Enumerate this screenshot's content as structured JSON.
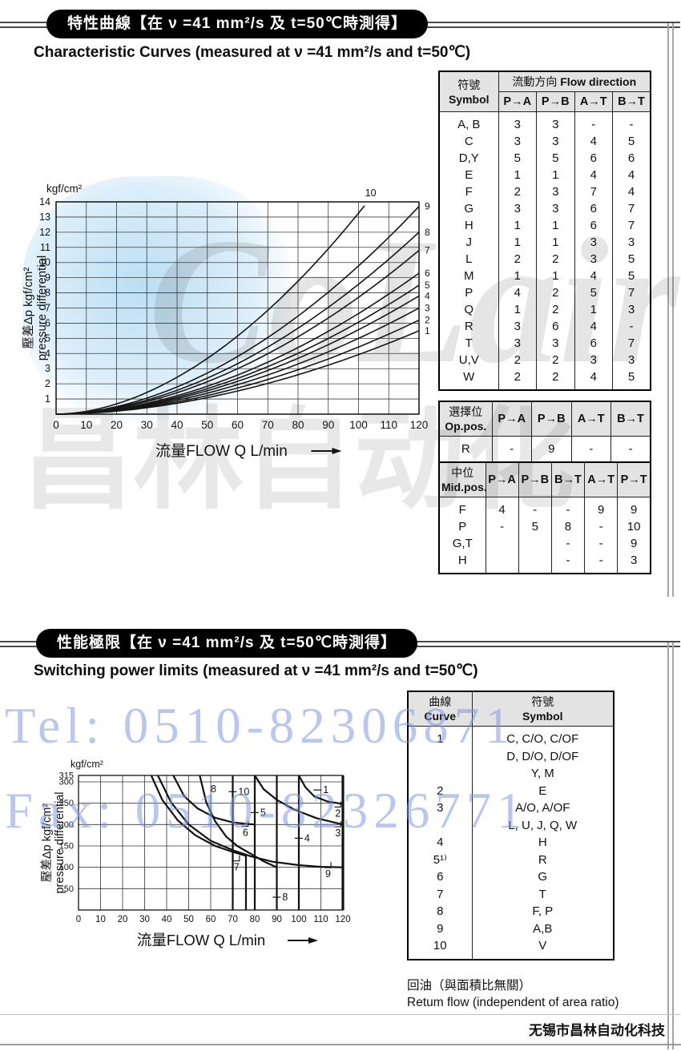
{
  "page": {
    "footer_company": "无锡市昌林自动化科技",
    "watermark_tel": "Tel: 0510-82306871",
    "watermark_fax": "Fax: 0510-82326771",
    "watermark_logo_en": "CoLair",
    "watermark_logo_cn": "昌林自动化"
  },
  "section1": {
    "title_cn": "特性曲線【在 ν =41 mm²/s 及 t=50℃時測得】",
    "title_en": "Characteristic Curves  (measured at ν =41 mm²/s and t=50℃)",
    "flow_table": {
      "header_col_cn": "符號",
      "header_col_en": "Symbol",
      "header_group_cn": "流動方向",
      "header_group_en": "Flow direction",
      "directions": [
        "P→A",
        "P→B",
        "A→T",
        "B→T"
      ],
      "rows": [
        {
          "symbol": "A, B",
          "values": [
            "3",
            "3",
            "-",
            "-"
          ]
        },
        {
          "symbol": "C",
          "values": [
            "3",
            "3",
            "4",
            "5"
          ]
        },
        {
          "symbol": "D,Y",
          "values": [
            "5",
            "5",
            "6",
            "6"
          ]
        },
        {
          "symbol": "E",
          "values": [
            "1",
            "1",
            "4",
            "4"
          ]
        },
        {
          "symbol": "F",
          "values": [
            "2",
            "3",
            "7",
            "4"
          ]
        },
        {
          "symbol": "G",
          "values": [
            "3",
            "3",
            "6",
            "7"
          ]
        },
        {
          "symbol": "H",
          "values": [
            "1",
            "1",
            "6",
            "7"
          ]
        },
        {
          "symbol": "J",
          "values": [
            "1",
            "1",
            "3",
            "3"
          ]
        },
        {
          "symbol": "L",
          "values": [
            "2",
            "2",
            "3",
            "5"
          ]
        },
        {
          "symbol": "M",
          "values": [
            "1",
            "1",
            "4",
            "5"
          ]
        },
        {
          "symbol": "P",
          "values": [
            "4",
            "2",
            "5",
            "7"
          ]
        },
        {
          "symbol": "Q",
          "values": [
            "1",
            "2",
            "1",
            "3"
          ]
        },
        {
          "symbol": "R",
          "values": [
            "3",
            "6",
            "4",
            "-"
          ]
        },
        {
          "symbol": "T",
          "values": [
            "3",
            "3",
            "6",
            "7"
          ]
        },
        {
          "symbol": "U,V",
          "values": [
            "2",
            "2",
            "3",
            "3"
          ]
        },
        {
          "symbol": "W",
          "values": [
            "2",
            "2",
            "4",
            "5"
          ]
        }
      ]
    },
    "op_pos_table": {
      "header_cn": "選擇位",
      "header_en": "Op.pos.",
      "directions": [
        "P→A",
        "P→B",
        "A→T",
        "B→T"
      ],
      "rows": [
        {
          "symbol": "R",
          "values": [
            "-",
            "9",
            "-",
            "-"
          ]
        }
      ]
    },
    "mid_pos_table": {
      "header_cn": "中位",
      "header_en": "Mid.pos.",
      "directions": [
        "P→A",
        "P→B",
        "B→T",
        "A→T",
        "P→T"
      ],
      "rows": [
        {
          "symbol": "F",
          "values": [
            "4",
            "-",
            "-",
            "9",
            "9"
          ]
        },
        {
          "symbol": "P",
          "values": [
            "-",
            "5",
            "8",
            "-",
            "10"
          ]
        },
        {
          "symbol": "G,T",
          "values": [
            "",
            "",
            "-",
            "-",
            "9"
          ]
        },
        {
          "symbol": "H",
          "values": [
            "",
            "",
            "-",
            "-",
            "3"
          ]
        }
      ]
    }
  },
  "section2": {
    "title_cn": "性能極限【在 ν =41 mm²/s 及 t=50℃時測得】",
    "title_en": "Switching power limits  (measured at ν =41 mm²/s and t=50℃)",
    "curve_table": {
      "header_curve_cn": "曲線",
      "header_curve_en": "Curve",
      "header_symbol_cn": "符號",
      "header_symbol_en": "Symbol",
      "rows": [
        {
          "curve": "1",
          "symbol": "C, C/O, C/OF"
        },
        {
          "curve": "",
          "symbol": "D, D/O, D/OF"
        },
        {
          "curve": "",
          "symbol": "Y, M"
        },
        {
          "curve": "2",
          "symbol": "E"
        },
        {
          "curve": "3",
          "symbol": "A/O, A/OF"
        },
        {
          "curve": "",
          "symbol": "L, U, J, Q, W"
        },
        {
          "curve": "4",
          "symbol": "H"
        },
        {
          "curve": "5¹⁾",
          "symbol": "R"
        },
        {
          "curve": "6",
          "symbol": "G"
        },
        {
          "curve": "7",
          "symbol": "T"
        },
        {
          "curve": "8",
          "symbol": "F, P"
        },
        {
          "curve": "9",
          "symbol": "A,B"
        },
        {
          "curve": "10",
          "symbol": "V"
        }
      ]
    },
    "note_cn": "回油（與面積比無關）",
    "note_en": "Retum flow (independent of area ratio)"
  },
  "chart_data": [
    {
      "type": "line",
      "title": "Characteristic Curves",
      "unit_label": "kgf/cm²",
      "xlabel": "流量FLOW Q L/min",
      "ylabel_lines": [
        "壓差Δp kgf/cm²",
        "pressure differential"
      ],
      "xlim": [
        0,
        120
      ],
      "ylim": [
        0,
        14
      ],
      "xticks": [
        0,
        10,
        20,
        30,
        40,
        50,
        60,
        70,
        80,
        90,
        100,
        110,
        120
      ],
      "yticks": [
        1,
        2,
        3,
        4,
        5,
        6,
        7,
        8,
        9,
        10,
        11,
        12,
        13,
        14
      ],
      "grid": true,
      "legend_position": "right-edge-labels",
      "curve_exponent": 1.85,
      "curves": [
        {
          "label": "1",
          "q_end": 120,
          "p_end": 5.5
        },
        {
          "label": "2",
          "q_end": 120,
          "p_end": 6.2
        },
        {
          "label": "3",
          "q_end": 120,
          "p_end": 7.0
        },
        {
          "label": "4",
          "q_end": 120,
          "p_end": 7.8
        },
        {
          "label": "5",
          "q_end": 120,
          "p_end": 8.5
        },
        {
          "label": "6",
          "q_end": 120,
          "p_end": 9.3
        },
        {
          "label": "7",
          "q_end": 120,
          "p_end": 10.8
        },
        {
          "label": "8",
          "q_end": 120,
          "p_end": 12.0
        },
        {
          "label": "9",
          "q_end": 120,
          "p_end": 13.7
        },
        {
          "label": "10",
          "q_end": 103,
          "p_end": 14.0
        }
      ]
    },
    {
      "type": "line",
      "title": "Switching power limits",
      "unit_label": "kgf/cm²",
      "xlabel": "流量FLOW Q L/min",
      "ylabel_lines": [
        "壓差Δp kgf/cm²",
        "pressure differential"
      ],
      "xlim": [
        0,
        120
      ],
      "ylim": [
        0,
        315
      ],
      "xticks": [
        0,
        10,
        20,
        30,
        40,
        50,
        60,
        70,
        80,
        90,
        100,
        110,
        120
      ],
      "yticks": [
        50,
        100,
        150,
        200,
        250,
        300,
        315
      ],
      "grid": true,
      "vlines": [
        {
          "x": 70,
          "p1": 0,
          "p2": 315,
          "curve": "10",
          "thick": false
        },
        {
          "x": 76,
          "p1": 0,
          "p2": 127,
          "curve": "7",
          "thick": false
        },
        {
          "x": 80,
          "p1": 0,
          "p2": 315,
          "curve": "5",
          "thick": false
        },
        {
          "x": 90,
          "p1": 0,
          "p2": 315,
          "curve": "8",
          "thick": false
        },
        {
          "x": 100,
          "p1": 0,
          "p2": 315,
          "curve": "4",
          "thick": false
        },
        {
          "x": 120,
          "p1": 0,
          "p2": 315,
          "curve": "",
          "thick": true
        }
      ],
      "curves": [
        {
          "label": "8",
          "points": [
            [
              55,
              315
            ],
            [
              58,
              252
            ],
            [
              62,
              208
            ],
            [
              67,
              172
            ],
            [
              72,
              150
            ],
            [
              78,
              132
            ],
            [
              84,
              114
            ],
            [
              90,
              100
            ]
          ]
        },
        {
          "label": "6",
          "points": [
            [
              43,
              315
            ],
            [
              48,
              266
            ],
            [
              54,
              238
            ],
            [
              62,
              216
            ],
            [
              70,
              205
            ],
            [
              80,
              200
            ]
          ]
        },
        {
          "label": "7",
          "points": [
            [
              33,
              315
            ],
            [
              38,
              258
            ],
            [
              45,
              210
            ],
            [
              53,
              175
            ],
            [
              62,
              150
            ],
            [
              70,
              136
            ],
            [
              76,
              127
            ]
          ]
        },
        {
          "label": "9",
          "points": [
            [
              36,
              315
            ],
            [
              42,
              252
            ],
            [
              50,
              200
            ],
            [
              60,
              162
            ],
            [
              70,
              140
            ],
            [
              78,
              126
            ],
            [
              88,
              113
            ],
            [
              100,
              105
            ],
            [
              110,
              101
            ],
            [
              120,
              100
            ]
          ]
        },
        {
          "label": "1",
          "points": [
            [
              100,
              315
            ],
            [
              103,
              287
            ],
            [
              107,
              266
            ],
            [
              113,
              254
            ],
            [
              120,
              248
            ]
          ]
        },
        {
          "label": "2",
          "points": [
            [
              80,
              315
            ],
            [
              84,
              283
            ],
            [
              90,
              258
            ],
            [
              98,
              235
            ],
            [
              108,
              215
            ],
            [
              120,
              200
            ]
          ]
        }
      ],
      "labels": [
        {
          "text": "10",
          "x": 72.5,
          "y": 277,
          "dash": true,
          "bracket": false
        },
        {
          "text": "5",
          "x": 82.5,
          "y": 228,
          "dash": true,
          "bracket": false
        },
        {
          "text": "8",
          "x": 92.5,
          "y": 30,
          "dash": true,
          "bracket": false
        },
        {
          "text": "4",
          "x": 102.5,
          "y": 168,
          "dash": true,
          "bracket": false
        },
        {
          "text": "7",
          "x": 70.5,
          "y": 100,
          "dash": false,
          "bracket": true
        },
        {
          "text": "8",
          "x": 60,
          "y": 283,
          "dash": false,
          "bracket": false
        },
        {
          "text": "6",
          "x": 74.5,
          "y": 181,
          "dash": false,
          "bracket": true
        },
        {
          "text": "9",
          "x": 112,
          "y": 84,
          "dash": false,
          "bracket": true
        },
        {
          "text": "1",
          "x": 111,
          "y": 281,
          "dash": true,
          "bracket": false
        },
        {
          "text": "2",
          "x": 116.5,
          "y": 226,
          "dash": false,
          "bracket": true
        },
        {
          "text": "3",
          "x": 116.5,
          "y": 180,
          "dash": false,
          "bracket": true
        }
      ]
    }
  ]
}
